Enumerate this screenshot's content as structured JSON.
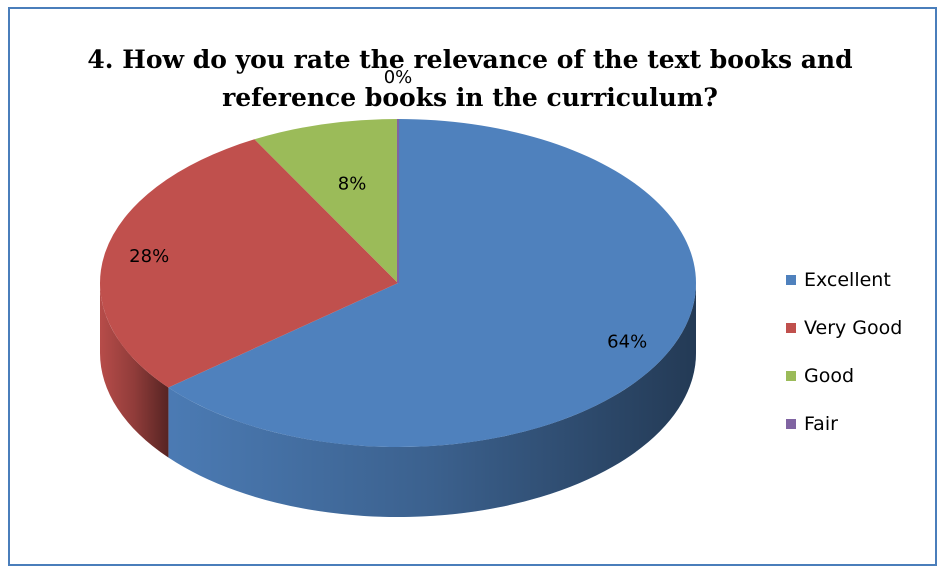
{
  "chart_data": {
    "type": "pie",
    "style": "3d",
    "title": "4. How do you rate the relevance of the text books and reference books in the curriculum?",
    "title_lines": [
      "4. How do you rate the relevance of the text books and",
      "reference books in the curriculum?"
    ],
    "categories": [
      "Excellent",
      "Very Good",
      "Good",
      "Fair"
    ],
    "values": [
      64,
      28,
      8,
      0
    ],
    "data_labels": [
      "64%",
      "28%",
      "8%",
      "0%"
    ],
    "colors": [
      "#4f81bd",
      "#c0504d",
      "#9bbb59",
      "#8064a2"
    ],
    "legend_position": "right"
  }
}
